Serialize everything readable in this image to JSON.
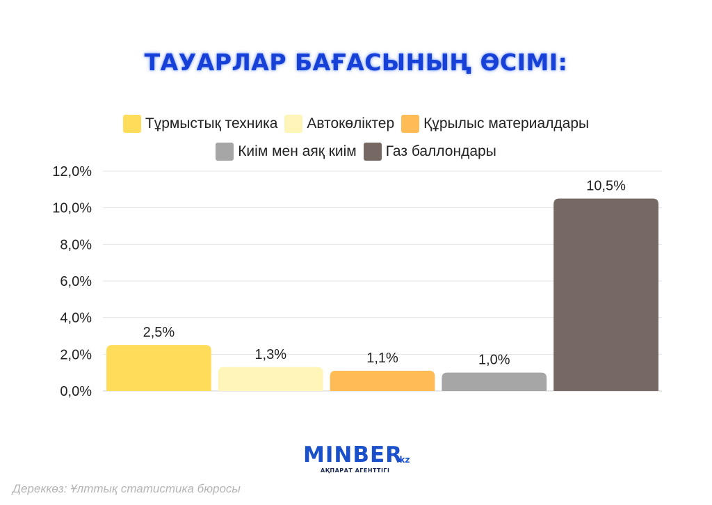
{
  "chart_data": {
    "type": "bar",
    "title": "ТАУАРЛАР БАҒАСЫНЫҢ ӨСІМІ:",
    "categories": [
      "Тұрмыстық техника",
      "Автокөліктер",
      "Құрылыс материалдары",
      "Киім мен аяқ киім",
      "Газ баллондары"
    ],
    "values": [
      2.5,
      1.3,
      1.1,
      1.0,
      10.5
    ],
    "data_labels": [
      "2,5%",
      "1,3%",
      "1,1%",
      "1,0%",
      "10,5%"
    ],
    "colors": [
      "#ffdc5a",
      "#fff5b8",
      "#ffbb55",
      "#a6a6a6",
      "#766963"
    ],
    "ylim": [
      0,
      12
    ],
    "y_ticks": [
      0,
      2,
      4,
      6,
      8,
      10,
      12
    ],
    "y_tick_labels": [
      "0,0%",
      "2,0%",
      "4,0%",
      "6,0%",
      "8,0%",
      "10,0%",
      "12,0%"
    ],
    "xlabel": "",
    "ylabel": "",
    "grid": true,
    "legend_position": "top"
  },
  "brand": {
    "name": "MINBER",
    "tld": ".kz",
    "subtitle": "АҚПАРАТ АГЕНТТІГІ"
  },
  "source": "Дереккөз: Ұлттық статистика бюросы"
}
